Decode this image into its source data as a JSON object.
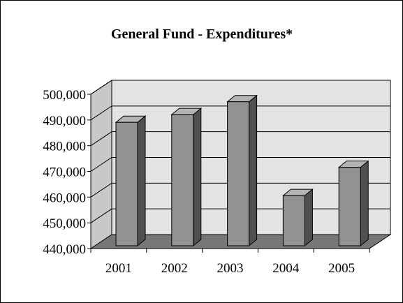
{
  "chart_data": {
    "type": "bar",
    "title": "General Fund - Expenditures*",
    "categories": [
      "2001",
      "2002",
      "2003",
      "2004",
      "2005"
    ],
    "values": [
      488000,
      491000,
      496000,
      459500,
      470500
    ],
    "ylim": [
      440000,
      500000
    ],
    "y_ticks": [
      440000,
      450000,
      460000,
      470000,
      480000,
      490000,
      500000
    ],
    "y_tick_labels": [
      "440,000",
      "450,000",
      "460,000",
      "470,000",
      "480,000",
      "490,000",
      "500,000"
    ],
    "xlabel": "",
    "ylabel": "",
    "grid": true,
    "legend": "none",
    "style": "3d-column"
  },
  "colors": {
    "bar_front": "#929292",
    "bar_side": "#505050",
    "bar_top": "#b4b4b4",
    "back_wall": "#e3e3e3",
    "side_wall": "#c8c8c8",
    "floor": "#777777",
    "gridline": "#000000",
    "outline": "#000000"
  }
}
